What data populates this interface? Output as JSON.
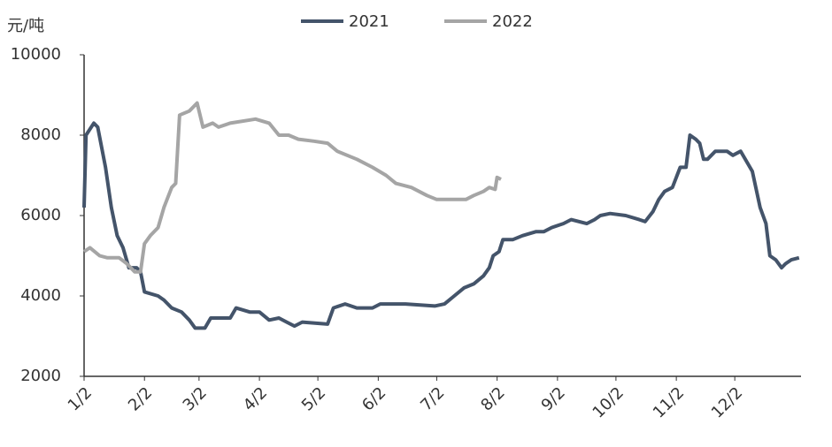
{
  "chart_data": {
    "type": "line",
    "y_label": "元/吨",
    "xlim": [
      0,
      368
    ],
    "xticks": [
      {
        "value": 0,
        "label": "1/2"
      },
      {
        "value": 31,
        "label": "2/2"
      },
      {
        "value": 59,
        "label": "3/2"
      },
      {
        "value": 90,
        "label": "4/2"
      },
      {
        "value": 120,
        "label": "5/2"
      },
      {
        "value": 151,
        "label": "6/2"
      },
      {
        "value": 181,
        "label": "7/2"
      },
      {
        "value": 212,
        "label": "8/2"
      },
      {
        "value": 243,
        "label": "9/2"
      },
      {
        "value": 273,
        "label": "10/2"
      },
      {
        "value": 304,
        "label": "11/2"
      },
      {
        "value": 334,
        "label": "12/2"
      }
    ],
    "ylim": [
      2000,
      10000
    ],
    "yticks": [
      2000,
      4000,
      6000,
      8000,
      10000
    ],
    "series": [
      {
        "name": "2021",
        "color": "#44546a",
        "x": [
          0,
          1,
          5,
          7,
          11,
          14,
          17,
          20,
          23,
          27,
          29,
          31,
          38,
          41,
          45,
          50,
          54,
          57,
          62,
          65,
          75,
          78,
          85,
          90,
          95,
          100,
          104,
          108,
          112,
          125,
          128,
          134,
          140,
          148,
          152,
          165,
          180,
          185,
          190,
          195,
          200,
          205,
          208,
          210,
          213,
          215,
          220,
          225,
          232,
          236,
          240,
          246,
          250,
          258,
          262,
          265,
          270,
          278,
          285,
          288,
          292,
          295,
          298,
          302,
          306,
          309,
          311,
          314,
          316,
          318,
          320,
          324,
          330,
          333,
          337,
          343,
          347,
          350,
          352,
          355,
          358,
          360,
          363,
          367
        ],
        "values": [
          6200,
          8000,
          8300,
          8200,
          7200,
          6200,
          5500,
          5200,
          4700,
          4700,
          4600,
          4100,
          4000,
          3900,
          3700,
          3600,
          3400,
          3200,
          3200,
          3450,
          3450,
          3700,
          3600,
          3600,
          3400,
          3450,
          3350,
          3250,
          3350,
          3300,
          3700,
          3800,
          3700,
          3700,
          3800,
          3800,
          3750,
          3800,
          4000,
          4200,
          4300,
          4500,
          4700,
          5000,
          5100,
          5400,
          5400,
          5500,
          5600,
          5600,
          5700,
          5800,
          5900,
          5800,
          5900,
          6000,
          6050,
          6000,
          5900,
          5850,
          6100,
          6400,
          6600,
          6700,
          7200,
          7200,
          8000,
          7900,
          7800,
          7400,
          7400,
          7600,
          7600,
          7500,
          7600,
          7100,
          6200,
          5800,
          5000,
          4900,
          4700,
          4800,
          4900,
          4950
        ]
      },
      {
        "name": "2022",
        "color": "#a5a5a5",
        "x": [
          0,
          3,
          8,
          12,
          18,
          22,
          26,
          29,
          31,
          34,
          38,
          41,
          45,
          47,
          49,
          54,
          58,
          61,
          66,
          69,
          75,
          88,
          95,
          100,
          105,
          110,
          118,
          125,
          130,
          140,
          148,
          155,
          160,
          168,
          176,
          181,
          188,
          196,
          200,
          205,
          208,
          211,
          212,
          214
        ],
        "values": [
          5100,
          5200,
          5000,
          4950,
          4950,
          4800,
          4600,
          4600,
          5300,
          5500,
          5700,
          6200,
          6700,
          6800,
          8500,
          8600,
          8800,
          8200,
          8300,
          8200,
          8300,
          8400,
          8300,
          8000,
          8000,
          7900,
          7850,
          7800,
          7600,
          7400,
          7200,
          7000,
          6800,
          6700,
          6500,
          6400,
          6400,
          6400,
          6500,
          6600,
          6700,
          6650,
          6950,
          6900
        ]
      }
    ]
  }
}
